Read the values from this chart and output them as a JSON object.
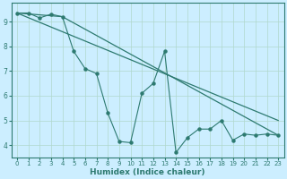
{
  "xlabel": "Humidex (Indice chaleur)",
  "bg_color": "#cceeff",
  "grid_color": "#b0d8cc",
  "line_color": "#2d7a70",
  "xlim": [
    -0.5,
    23.5
  ],
  "ylim": [
    3.5,
    9.75
  ],
  "yticks": [
    4,
    5,
    6,
    7,
    8,
    9
  ],
  "xticks": [
    0,
    1,
    2,
    3,
    4,
    5,
    6,
    7,
    8,
    9,
    10,
    11,
    12,
    13,
    14,
    15,
    16,
    17,
    18,
    19,
    20,
    21,
    22,
    23
  ],
  "zigzag_x": [
    0,
    1,
    2,
    3,
    4,
    5,
    6,
    7,
    8,
    9,
    10,
    11,
    12,
    13,
    14,
    15,
    16,
    17,
    18,
    19,
    20,
    21,
    22,
    23
  ],
  "zigzag_y": [
    9.35,
    9.35,
    9.15,
    9.3,
    9.2,
    7.8,
    7.1,
    6.9,
    5.3,
    4.15,
    4.1,
    6.1,
    6.5,
    7.8,
    3.7,
    4.3,
    4.65,
    4.65,
    5.0,
    4.2,
    4.45,
    4.4,
    4.45,
    4.4
  ],
  "line1_x": [
    0,
    4,
    23
  ],
  "line1_y": [
    9.35,
    9.2,
    4.4
  ],
  "line2_x": [
    0,
    23
  ],
  "line2_y": [
    9.35,
    5.0
  ]
}
